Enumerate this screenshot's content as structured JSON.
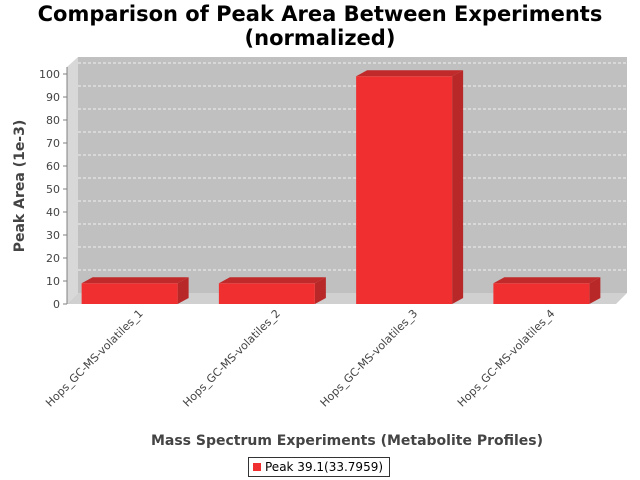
{
  "chart_data": {
    "type": "bar",
    "title": "Comparison of Peak Area Between Experiments",
    "subtitle": "(normalized)",
    "xlabel": "Mass Spectrum Experiments (Metabolite Profiles)",
    "ylabel": "Peak Area (1e-3)",
    "categories": [
      "Hops_GC-MS-volatiles_1",
      "Hops_GC-MS-volatiles_2",
      "Hops_GC-MS-volatiles_3",
      "Hops_GC-MS-volatiles_4"
    ],
    "series": [
      {
        "name": "Peak 39.1(33.7959)",
        "values": [
          9,
          9,
          99,
          9
        ],
        "color": "#f03030"
      }
    ],
    "yticks": [
      0,
      10,
      20,
      30,
      40,
      50,
      60,
      70,
      80,
      90,
      100
    ],
    "ylim": [
      0,
      100
    ],
    "grid": true,
    "legend_position": "bottom",
    "colors": {
      "plot_background": "#c0c0c0",
      "bar": "#f03030",
      "bar_side": "#b82828",
      "bar_top": "#c02a2a"
    }
  }
}
